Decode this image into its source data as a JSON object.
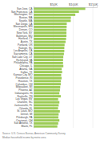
{
  "chart_data": {
    "type": "bar",
    "orientation": "horizontal",
    "grid": true,
    "color": "#9ccc55",
    "categories": [
      "San Jose, CA",
      "San Francisco, CA",
      "Washington, DC",
      "Boston, MA",
      "Seattle, WA",
      "San Diego, CA",
      "Minneapolis, MN",
      "Denver, CO",
      "New York, NY",
      "Baltimore, MD",
      "Hartford, CT",
      "Austin, TX",
      "Portland, OR",
      "Raleigh, NC",
      "Los Angeles, CA",
      "Sacramento, CA",
      "Salt Lake City, UT",
      "Richmond, VA",
      "Philadelphia, PA",
      "Chicago, IL",
      "Atlanta, GA",
      "Dallas, TX",
      "Kansas City, MO",
      "Providence, RI",
      "Houston, TX",
      "Columbus, OH",
      "Milwaukee, WI",
      "Phoenix, AZ",
      "Indianapolis, IN",
      "Nashville, TN",
      "Las Vegas, NV",
      "Charlotte, NC",
      "Jacksonville, FL",
      "Orlando, FL",
      "St. Louis, MO",
      "Detroit, MI",
      "Pittsburgh, PA",
      "Cincinnati, OH",
      "San Antonio, TX",
      "Miami, FL"
    ],
    "values": [
      130865,
      114696,
      105659,
      94430,
      94027,
      83985,
      83698,
      83289,
      83160,
      83160,
      82258,
      80954,
      78439,
      77801,
      77774,
      76706,
      75202,
      74592,
      74533,
      75379,
      71193,
      72265,
      69813,
      70967,
      69193,
      68726,
      67448,
      66637,
      65245,
      68777,
      62107,
      65342,
      63570,
      61876,
      66417,
      63474,
      62638,
      65311,
      62355,
      60141
    ],
    "xlim": [
      0,
      160000
    ],
    "xticks": [
      {
        "value": 50000,
        "label": "$50K"
      },
      {
        "value": 100000,
        "label": "$100K"
      },
      {
        "value": 150000,
        "label": "$150K"
      }
    ],
    "annotations": [
      "Source: U.S. Census Bureau, American Community Survey",
      "Median household income by metro area"
    ]
  }
}
